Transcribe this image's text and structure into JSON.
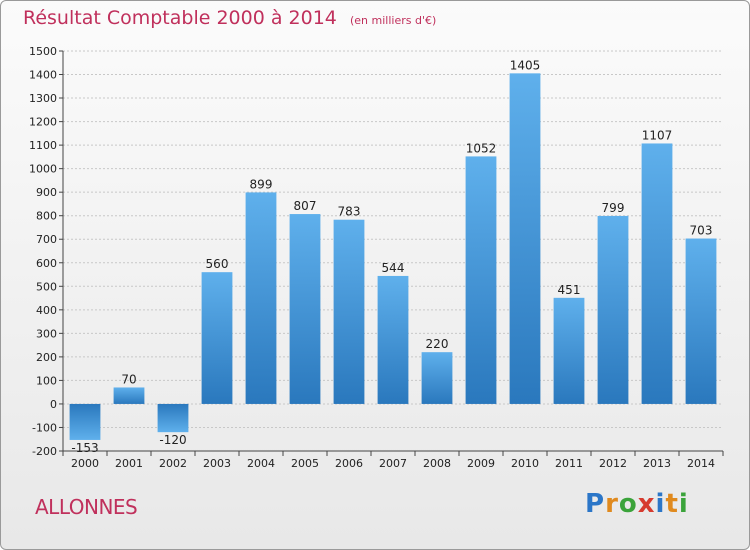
{
  "chart_data": {
    "type": "bar",
    "title": "Résultat Comptable 2000 à 2014",
    "subtitle": "(en milliers d'€)",
    "categories": [
      "2000",
      "2001",
      "2002",
      "2003",
      "2004",
      "2005",
      "2006",
      "2007",
      "2008",
      "2009",
      "2010",
      "2011",
      "2012",
      "2013",
      "2014"
    ],
    "values": [
      -153,
      70,
      -120,
      560,
      899,
      807,
      783,
      544,
      220,
      1052,
      1405,
      451,
      799,
      1107,
      703
    ],
    "ylim": [
      -200,
      1500
    ],
    "yticks": [
      -200,
      -100,
      0,
      100,
      200,
      300,
      400,
      500,
      600,
      700,
      800,
      900,
      1000,
      1100,
      1200,
      1300,
      1400,
      1500
    ],
    "grid": true,
    "xlabel": "",
    "ylabel": "",
    "bar_color": "#3f8fd2"
  },
  "commune": "ALLONNES",
  "brand": {
    "letters": [
      "P",
      "r",
      "o",
      "x",
      "i",
      "t",
      "i"
    ],
    "colors": [
      "#2b76c8",
      "#e08a1e",
      "#3aa33a",
      "#d63b2f",
      "#2b76c8",
      "#e08a1e",
      "#3aa33a"
    ]
  }
}
